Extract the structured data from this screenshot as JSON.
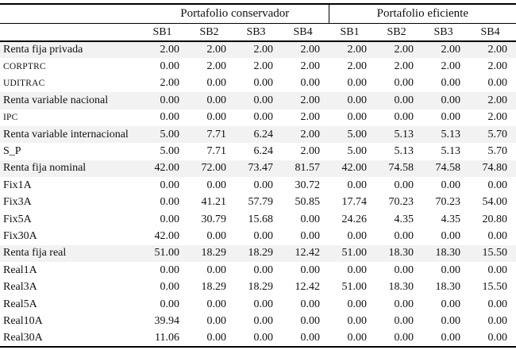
{
  "table": {
    "groups": [
      {
        "label": "Portafolio conservador"
      },
      {
        "label": "Portafolio eficiente"
      }
    ],
    "sub_headers": [
      "SB1",
      "SB2",
      "SB3",
      "SB4",
      "SB1",
      "SB2",
      "SB3",
      "SB4"
    ],
    "rows": [
      {
        "label": "Renta fija privada",
        "style": "category",
        "values": [
          "2.00",
          "2.00",
          "2.00",
          "2.00",
          "2.00",
          "2.00",
          "2.00",
          "2.00"
        ]
      },
      {
        "label": "CORPTRC",
        "style": "item-small",
        "values": [
          "0.00",
          "2.00",
          "2.00",
          "2.00",
          "2.00",
          "2.00",
          "2.00",
          "2.00"
        ]
      },
      {
        "label": "UDITRAC",
        "style": "item-small",
        "values": [
          "2.00",
          "0.00",
          "0.00",
          "0.00",
          "0.00",
          "0.00",
          "0.00",
          "0.00"
        ]
      },
      {
        "label": "Renta variable nacional",
        "style": "category",
        "values": [
          "0.00",
          "0.00",
          "0.00",
          "2.00",
          "0.00",
          "0.00",
          "0.00",
          "2.00"
        ]
      },
      {
        "label": "IPC",
        "style": "item-small",
        "values": [
          "0.00",
          "0.00",
          "0.00",
          "2.00",
          "0.00",
          "0.00",
          "0.00",
          "2.00"
        ]
      },
      {
        "label": "Renta variable internacional",
        "style": "category",
        "values": [
          "5.00",
          "7.71",
          "6.24",
          "2.00",
          "5.00",
          "5.13",
          "5.13",
          "5.70"
        ]
      },
      {
        "label": "S_P",
        "style": "item",
        "values": [
          "5.00",
          "7.71",
          "6.24",
          "2.00",
          "5.00",
          "5.13",
          "5.13",
          "5.70"
        ]
      },
      {
        "label": "Renta fija nominal",
        "style": "category",
        "values": [
          "42.00",
          "72.00",
          "73.47",
          "81.57",
          "42.00",
          "74.58",
          "74.58",
          "74.80"
        ]
      },
      {
        "label": "Fix1A",
        "style": "item",
        "values": [
          "0.00",
          "0.00",
          "0.00",
          "30.72",
          "0.00",
          "0.00",
          "0.00",
          "0.00"
        ]
      },
      {
        "label": "Fix3A",
        "style": "item",
        "values": [
          "0.00",
          "41.21",
          "57.79",
          "50.85",
          "17.74",
          "70.23",
          "70.23",
          "54.00"
        ]
      },
      {
        "label": "Fix5A",
        "style": "item",
        "values": [
          "0.00",
          "30.79",
          "15.68",
          "0.00",
          "24.26",
          "4.35",
          "4.35",
          "20.80"
        ]
      },
      {
        "label": "Fix30A",
        "style": "item",
        "values": [
          "42.00",
          "0.00",
          "0.00",
          "0.00",
          "0.00",
          "0.00",
          "0.00",
          "0.00"
        ]
      },
      {
        "label": "Renta fija real",
        "style": "category",
        "values": [
          "51.00",
          "18.29",
          "18.29",
          "12.42",
          "51.00",
          "18.30",
          "18.30",
          "15.50"
        ]
      },
      {
        "label": "Real1A",
        "style": "item",
        "values": [
          "0.00",
          "0.00",
          "0.00",
          "0.00",
          "0.00",
          "0.00",
          "0.00",
          "0.00"
        ]
      },
      {
        "label": "Real3A",
        "style": "item",
        "values": [
          "0.00",
          "18.29",
          "18.29",
          "12.42",
          "51.00",
          "18.30",
          "18.30",
          "15.50"
        ]
      },
      {
        "label": "Real5A",
        "style": "item",
        "values": [
          "0.00",
          "0.00",
          "0.00",
          "0.00",
          "0.00",
          "0.00",
          "0.00",
          "0.00"
        ]
      },
      {
        "label": "Real10A",
        "style": "item",
        "values": [
          "39.94",
          "0.00",
          "0.00",
          "0.00",
          "0.00",
          "0.00",
          "0.00",
          "0.00"
        ]
      },
      {
        "label": "Real30A",
        "style": "item",
        "values": [
          "11.06",
          "0.00",
          "0.00",
          "0.00",
          "0.00",
          "0.00",
          "0.00",
          "0.00"
        ]
      }
    ]
  },
  "colors": {
    "category_row_bg": "#f2f2f2",
    "border": "#000000",
    "text": "#111111"
  }
}
